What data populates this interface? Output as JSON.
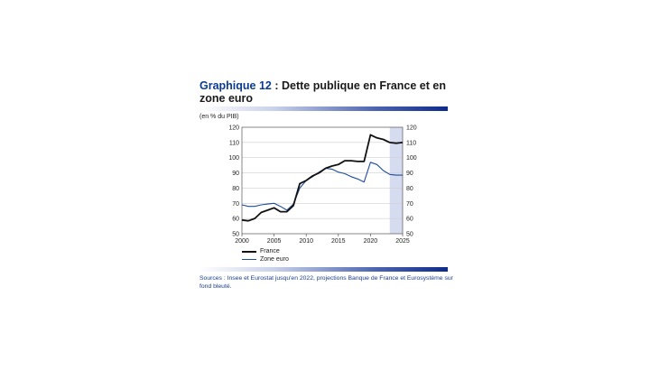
{
  "title": {
    "number": "Graphique 12",
    "text": " : Dette publique en France et en zone euro"
  },
  "unit_label": "(en % du PIB)",
  "source": "Sources : Insee et Eurostat jusqu'en 2022, projections Banque de France et Eurosystème sur fond bleuté.",
  "chart_data": {
    "type": "line",
    "xlim": [
      2000,
      2025
    ],
    "ylim": [
      50,
      120
    ],
    "x_ticks": [
      2000,
      2005,
      2010,
      2015,
      2020,
      2025
    ],
    "y_ticks": [
      50,
      60,
      70,
      80,
      90,
      100,
      110,
      120
    ],
    "projection_from": 2023,
    "x": [
      2000,
      2001,
      2002,
      2003,
      2004,
      2005,
      2006,
      2007,
      2008,
      2009,
      2010,
      2011,
      2012,
      2013,
      2014,
      2015,
      2016,
      2017,
      2018,
      2019,
      2020,
      2021,
      2022,
      2023,
      2024,
      2025
    ],
    "series": [
      {
        "name": "France",
        "color": "#111111",
        "values": [
          59,
          58.5,
          60,
          64,
          65.5,
          67,
          64.5,
          64.5,
          68.5,
          83,
          85,
          88,
          90,
          93,
          94.5,
          95.5,
          98,
          98,
          97.5,
          97.5,
          115,
          113,
          112,
          110,
          109.5,
          110
        ]
      },
      {
        "name": "Zone euro",
        "color": "#1f4d9c",
        "values": [
          69,
          68,
          68,
          69,
          69.5,
          70,
          68,
          65.5,
          69.5,
          80,
          85,
          87.5,
          90.5,
          93,
          92.5,
          90.5,
          89.5,
          87.5,
          86,
          84,
          97,
          95.5,
          91.5,
          89,
          88.5,
          88.5
        ]
      }
    ]
  }
}
